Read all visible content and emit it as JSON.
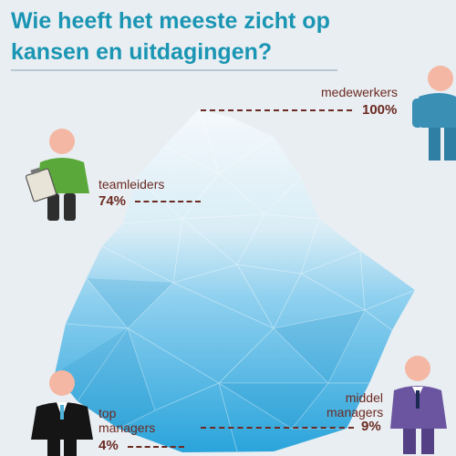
{
  "title": "Wie heeft het meeste zicht op kansen en uitdagingen?",
  "groups": [
    {
      "label": "medewerkers",
      "percent": "100%",
      "value": 100
    },
    {
      "label": "teamleiders",
      "percent": "74%",
      "value": 74
    },
    {
      "label": "middel managers",
      "percent": "9%",
      "value": 9
    },
    {
      "label": "top managers",
      "percent": "4%",
      "value": 4
    }
  ],
  "colors": {
    "title": "#1a95b3",
    "label": "#6b2a22",
    "ice_top": "#f2f8fb",
    "ice_bottom": "#2ca6dc",
    "medewerkers_shirt": "#3a8fb5",
    "teamleiders_shirt": "#5aa83a",
    "middel_managers_suit": "#6b55a0",
    "top_managers_suit": "#151515"
  },
  "icons": [
    "iceberg-illustration",
    "employee-figure",
    "teamlead-figure-with-clipboard",
    "middle-manager-figure",
    "top-manager-figure"
  ]
}
